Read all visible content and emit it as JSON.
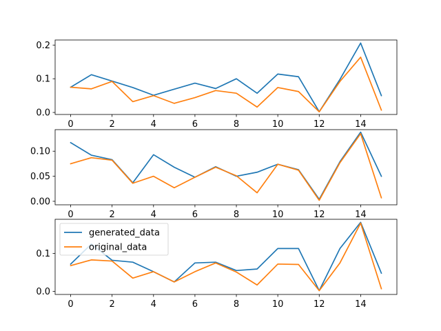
{
  "chart_data": [
    {
      "type": "line",
      "x": [
        0,
        1,
        2,
        3,
        4,
        5,
        6,
        7,
        8,
        9,
        10,
        11,
        12,
        13,
        14,
        15
      ],
      "xlim": [
        -0.75,
        15.75
      ],
      "ylim": [
        -0.006,
        0.215
      ],
      "xticks": [
        0,
        2,
        4,
        6,
        8,
        10,
        12,
        14
      ],
      "yticks": [
        0.0,
        0.1,
        0.2
      ],
      "ytick_labels": [
        "0.0",
        "0.1",
        "0.2"
      ],
      "xlabel": "",
      "ylabel": "",
      "title": "",
      "series": [
        {
          "name": "generated_data",
          "color": "#1f77b4",
          "values": [
            0.075,
            0.112,
            0.093,
            0.074,
            0.051,
            0.069,
            0.087,
            0.071,
            0.1,
            0.057,
            0.114,
            0.106,
            0.002,
            0.098,
            0.206,
            0.05
          ]
        },
        {
          "name": "original_data",
          "color": "#ff7f0e",
          "values": [
            0.075,
            0.07,
            0.092,
            0.032,
            0.05,
            0.027,
            0.044,
            0.065,
            0.057,
            0.016,
            0.074,
            0.062,
            0.002,
            0.092,
            0.164,
            0.007
          ]
        }
      ],
      "legend": null
    },
    {
      "type": "line",
      "x": [
        0,
        1,
        2,
        3,
        4,
        5,
        6,
        7,
        8,
        9,
        10,
        11,
        12,
        13,
        14,
        15
      ],
      "xlim": [
        -0.75,
        15.75
      ],
      "ylim": [
        -0.007,
        0.143
      ],
      "xticks": [
        0,
        2,
        4,
        6,
        8,
        10,
        12,
        14
      ],
      "yticks": [
        0.0,
        0.05,
        0.1
      ],
      "ytick_labels": [
        "0.00",
        "0.05",
        "0.10"
      ],
      "xlabel": "",
      "ylabel": "",
      "title": "",
      "series": [
        {
          "name": "generated_data",
          "color": "#1f77b4",
          "values": [
            0.117,
            0.092,
            0.083,
            0.037,
            0.093,
            0.068,
            0.048,
            0.069,
            0.05,
            0.058,
            0.074,
            0.063,
            0.004,
            0.079,
            0.138,
            0.05
          ]
        },
        {
          "name": "original_data",
          "color": "#ff7f0e",
          "values": [
            0.075,
            0.087,
            0.082,
            0.036,
            0.05,
            0.027,
            0.048,
            0.068,
            0.051,
            0.017,
            0.074,
            0.062,
            0.002,
            0.077,
            0.135,
            0.007
          ]
        }
      ],
      "legend": null
    },
    {
      "type": "line",
      "x": [
        0,
        1,
        2,
        3,
        4,
        5,
        6,
        7,
        8,
        9,
        10,
        11,
        12,
        13,
        14,
        15
      ],
      "xlim": [
        -0.75,
        15.75
      ],
      "ylim": [
        -0.008,
        0.19
      ],
      "xticks": [
        0,
        2,
        4,
        6,
        8,
        10,
        12,
        14
      ],
      "yticks": [
        0.0,
        0.1
      ],
      "ytick_labels": [
        "0.0",
        "0.1"
      ],
      "xlabel": "",
      "ylabel": "",
      "title": "",
      "series": [
        {
          "name": "generated_data",
          "color": "#1f77b4",
          "values": [
            0.072,
            0.125,
            0.082,
            0.077,
            0.052,
            0.025,
            0.075,
            0.077,
            0.055,
            0.059,
            0.113,
            0.113,
            0.002,
            0.113,
            0.182,
            0.048
          ]
        },
        {
          "name": "original_data",
          "color": "#ff7f0e",
          "values": [
            0.068,
            0.083,
            0.08,
            0.035,
            0.052,
            0.025,
            0.052,
            0.075,
            0.051,
            0.017,
            0.072,
            0.071,
            0.002,
            0.075,
            0.18,
            0.007
          ]
        }
      ],
      "legend": {
        "placement": "upper-left",
        "entries": [
          "generated_data",
          "original_data"
        ]
      }
    }
  ]
}
